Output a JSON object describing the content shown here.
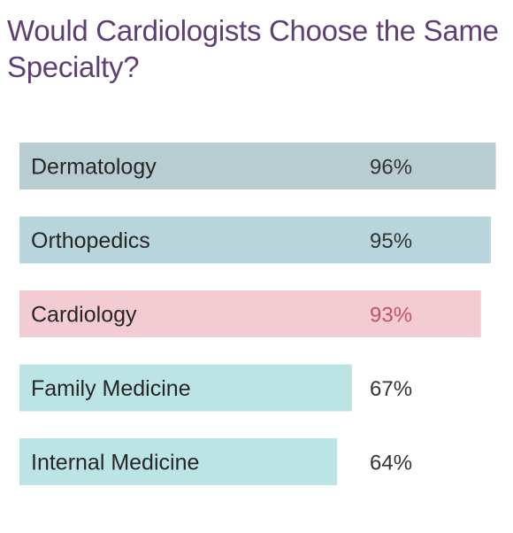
{
  "chart_data": {
    "type": "bar",
    "orientation": "horizontal",
    "title": "Would Cardiologists Choose the Same Specialty?",
    "categories": [
      "Dermatology",
      "Orthopedics",
      "Cardiology",
      "Family Medicine",
      "Internal Medicine"
    ],
    "values": [
      96,
      95,
      93,
      67,
      64
    ],
    "value_labels": [
      "96%",
      "95%",
      "93%",
      "67%",
      "64%"
    ],
    "highlight_category": "Cardiology",
    "xlim": [
      0,
      100
    ],
    "grid": false,
    "legend": "none",
    "colors": {
      "title": "#5e3f73",
      "bars": [
        "#b7cdd1",
        "#b7d5da",
        "#f3cbd3",
        "#bde4e5",
        "#bde4e5"
      ],
      "value_text": [
        "#333333",
        "#333333",
        "#c2526b",
        "#333333",
        "#333333"
      ]
    }
  }
}
